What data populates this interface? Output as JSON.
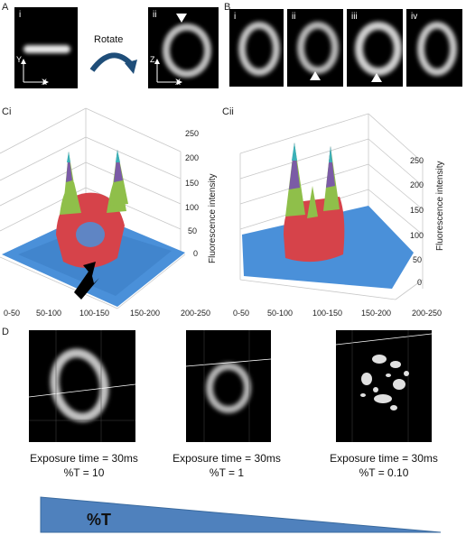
{
  "panels": {
    "A": {
      "label": "A",
      "sub_i": "i",
      "sub_ii": "ii",
      "rotate_text": "Rotate",
      "axis_y": "Y",
      "axis_x": "X",
      "axis_z": "Z",
      "axis_x2": "X"
    },
    "B": {
      "label": "B",
      "subs": [
        "i",
        "ii",
        "iii",
        "iv"
      ]
    },
    "Ci": {
      "label": "Ci",
      "zlabel": "Fluorescence intensity",
      "zticks": [
        "250",
        "200",
        "150",
        "100",
        "50",
        "0"
      ],
      "xticks": [
        "0-50",
        "50-100",
        "100-150",
        "150-200",
        "200-250"
      ]
    },
    "Cii": {
      "label": "Cii",
      "zlabel": "Fluorescence intensity",
      "zticks": [
        "250",
        "200",
        "150",
        "100",
        "50",
        "0"
      ],
      "xticks": [
        "0-50",
        "50-100",
        "100-150",
        "150-200",
        "200-250"
      ]
    },
    "D": {
      "label": "D",
      "captions": [
        {
          "line1": "Exposure time = 30ms",
          "line2": "%T = 10"
        },
        {
          "line1": "Exposure time = 30ms",
          "line2": "%T = 1"
        },
        {
          "line1": "Exposure time = 30ms",
          "line2": "%T = 0.10"
        }
      ]
    },
    "wedge": {
      "label": "%T",
      "fill": "#4f81bd"
    }
  }
}
